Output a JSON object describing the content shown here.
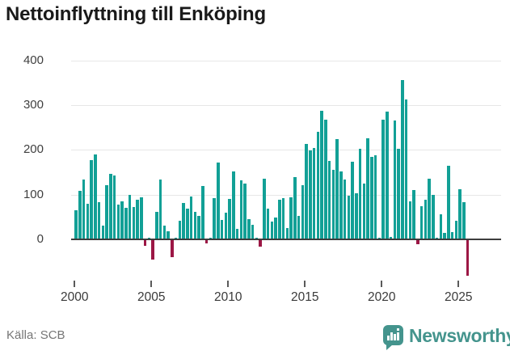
{
  "title": "Nettoinflyttning till Enköping",
  "source": "Källa: SCB",
  "brand": {
    "name": "Newsworthy",
    "color": "#44948d"
  },
  "colors": {
    "positive": "#12a096",
    "negative": "#9c1745",
    "grid": "#e7e7e7",
    "zero_axis": "#3d3d3d"
  },
  "chart_data": {
    "type": "bar",
    "title": "Nettoinflyttning till Enköping",
    "x_start": "2000Q1",
    "frequency": "quarterly",
    "x_tick_labels": [
      "2000",
      "2005",
      "2010",
      "2015",
      "2020",
      "2025"
    ],
    "y_ticks": [
      400,
      300,
      200,
      100,
      0
    ],
    "ylim": [
      -90,
      420
    ],
    "grid": true,
    "legend": false,
    "values": [
      65,
      108,
      134,
      80,
      178,
      190,
      83,
      30,
      121,
      146,
      142,
      78,
      85,
      70,
      100,
      72,
      88,
      94,
      -13,
      4,
      -43,
      61,
      134,
      30,
      18,
      -37,
      4,
      42,
      82,
      68,
      95,
      62,
      53,
      119,
      -7,
      4,
      92,
      172,
      44,
      59,
      91,
      152,
      23,
      132,
      125,
      45,
      33,
      4,
      -15,
      136,
      68,
      40,
      48,
      88,
      93,
      25,
      94,
      139,
      53,
      122,
      213,
      199,
      204,
      241,
      288,
      268,
      176,
      155,
      224,
      152,
      134,
      98,
      173,
      103,
      202,
      125,
      226,
      184,
      188,
      4,
      268,
      286,
      5,
      265,
      202,
      356,
      313,
      85,
      110,
      -8,
      74,
      88,
      135,
      100,
      4,
      56,
      14,
      165,
      16,
      41,
      112,
      83,
      -79
    ]
  }
}
